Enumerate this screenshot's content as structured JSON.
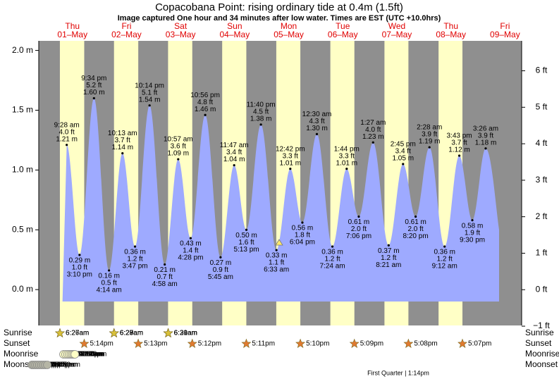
{
  "chart_data": {
    "type": "tide",
    "title": "Copacobana Point: rising  ordinary tide at 0.4m (1.5ft)",
    "subtitle": "Image captured One hour and 34 minutes after low water. Times are EST (UTC +10.0hrs)",
    "color": "#9eaaff",
    "ylim": [
      -0.3,
      2.08
    ],
    "yticks": [
      {
        "value": 0,
        "label": "0.0 m"
      },
      {
        "value": 0.5,
        "label": "0.5 m"
      },
      {
        "value": 1,
        "label": "1.0 m"
      },
      {
        "value": 1.5,
        "label": "1.5 m"
      },
      {
        "value": 2,
        "label": "2.0 m"
      }
    ],
    "y2lim": [
      -0.98,
      6.82
    ],
    "y2ticks": [
      {
        "value": -1,
        "label": "−1 ft"
      },
      {
        "value": 0,
        "label": "0 ft"
      },
      {
        "value": 1,
        "label": "1 ft"
      },
      {
        "value": 2,
        "label": "2 ft"
      },
      {
        "value": 3,
        "label": "3 ft"
      },
      {
        "value": 4,
        "label": "4 ft"
      },
      {
        "value": 5,
        "label": "5 ft"
      },
      {
        "value": 6,
        "label": "6 ft"
      }
    ],
    "days": [
      {
        "weekday": "Thu",
        "date": "01–May",
        "tides": [
          {
            "time": "9:28 am",
            "value": 1.21,
            "label": "1.21 m",
            "feet": "4.0 ft"
          },
          {
            "time": "3:10 pm",
            "value": 0.29,
            "label": "0.29 m",
            "feet": "1.0 ft"
          },
          {
            "time": "9:34 pm",
            "value": 1.6,
            "label": "1.60 m",
            "feet": "5.2 ft"
          }
        ]
      },
      {
        "weekday": "Fri",
        "date": "02–May",
        "tides": [
          {
            "time": "4:14 am",
            "value": 0.16,
            "label": "0.16 m",
            "feet": "0.5 ft"
          },
          {
            "time": "10:13 am",
            "value": 1.14,
            "label": "1.14 m",
            "feet": "3.7 ft"
          },
          {
            "time": "3:47 pm",
            "value": 0.36,
            "label": "0.36 m",
            "feet": "1.2 ft"
          },
          {
            "time": "10:14 pm",
            "value": 1.54,
            "label": "1.54 m",
            "feet": "5.1 ft"
          }
        ]
      },
      {
        "weekday": "Sat",
        "date": "03–May",
        "tides": [
          {
            "time": "4:58 am",
            "value": 0.21,
            "label": "0.21 m",
            "feet": "0.7 ft"
          },
          {
            "time": "10:57 am",
            "value": 1.09,
            "label": "1.09 m",
            "feet": "3.6 ft"
          },
          {
            "time": "4:28 pm",
            "value": 0.43,
            "label": "0.43 m",
            "feet": "1.4 ft"
          },
          {
            "time": "10:56 pm",
            "value": 1.46,
            "label": "1.46 m",
            "feet": "4.8 ft"
          }
        ]
      },
      {
        "weekday": "Sun",
        "date": "04–May",
        "tides": [
          {
            "time": "5:45 am",
            "value": 0.27,
            "label": "0.27 m",
            "feet": "0.9 ft"
          },
          {
            "time": "11:47 am",
            "value": 1.04,
            "label": "1.04 m",
            "feet": "3.4 ft"
          },
          {
            "time": "5:13 pm",
            "value": 0.5,
            "label": "0.50 m",
            "feet": "1.6 ft"
          },
          {
            "time": "11:40 pm",
            "value": 1.38,
            "label": "1.38 m",
            "feet": "4.5 ft"
          }
        ]
      },
      {
        "weekday": "Mon",
        "date": "05–May",
        "tides": [
          {
            "time": "6:33 am",
            "value": 0.33,
            "label": "0.33 m",
            "feet": "1.1 ft"
          },
          {
            "time": "12:42 pm",
            "value": 1.01,
            "label": "1.01 m",
            "feet": "3.3 ft"
          },
          {
            "time": "6:04 pm",
            "value": 0.56,
            "label": "0.56 m",
            "feet": "1.8 ft"
          }
        ]
      },
      {
        "weekday": "Tue",
        "date": "06–May",
        "tides": [
          {
            "time": "12:30 am",
            "value": 1.3,
            "label": "1.30 m",
            "feet": "4.3 ft"
          },
          {
            "time": "7:24 am",
            "value": 0.36,
            "label": "0.36 m",
            "feet": "1.2 ft"
          },
          {
            "time": "1:44 pm",
            "value": 1.01,
            "label": "1.01 m",
            "feet": "3.3 ft"
          },
          {
            "time": "7:06 pm",
            "value": 0.61,
            "label": "0.61 m",
            "feet": "2.0 ft"
          }
        ]
      },
      {
        "weekday": "Wed",
        "date": "07–May",
        "tides": [
          {
            "time": "1:27 am",
            "value": 1.23,
            "label": "1.23 m",
            "feet": "4.0 ft"
          },
          {
            "time": "8:21 am",
            "value": 0.37,
            "label": "0.37 m",
            "feet": "1.2 ft"
          },
          {
            "time": "2:45 pm",
            "value": 1.05,
            "label": "1.05 m",
            "feet": "3.4 ft"
          },
          {
            "time": "8:20 pm",
            "value": 0.61,
            "label": "0.61 m",
            "feet": "2.0 ft"
          }
        ]
      },
      {
        "weekday": "Thu",
        "date": "08–May",
        "tides": [
          {
            "time": "2:28 am",
            "value": 1.19,
            "label": "1.19 m",
            "feet": "3.9 ft"
          },
          {
            "time": "9:12 am",
            "value": 0.36,
            "label": "0.36 m",
            "feet": "1.2 ft"
          },
          {
            "time": "3:43 pm",
            "value": 1.12,
            "label": "1.12 m",
            "feet": "3.7 ft"
          },
          {
            "time": "9:30 pm",
            "value": 0.58,
            "label": "0.58 m",
            "feet": "1.9 ft"
          }
        ]
      },
      {
        "weekday": "Fri",
        "date": "09–May",
        "tides": [
          {
            "time": "3:26 am",
            "value": 1.18,
            "label": "1.18 m",
            "feet": "3.9 ft"
          }
        ]
      }
    ],
    "almanac": [
      {
        "name": "Sunrise",
        "times": [
          "6:26am",
          "6:27am",
          "6:27am",
          "6:28am",
          "6:29am",
          "6:29am",
          "6:30am",
          "6:31am"
        ]
      },
      {
        "name": "Sunset",
        "times": [
          "5:14pm",
          "5:13pm",
          "5:12pm",
          "5:11pm",
          "5:10pm",
          "5:09pm",
          "5:08pm",
          "5:07pm"
        ]
      },
      {
        "name": "Moonrise",
        "times": [
          "8:02am",
          "8:57am",
          "9:48am",
          "10:34am",
          "11:17am",
          "11:56am",
          "12:32pm",
          "1:06pm"
        ]
      },
      {
        "name": "Moonset",
        "times": [
          "6:00pm",
          "6:46pm",
          "7:35pm",
          "8:25pm",
          "9:17pm",
          "10:10pm",
          "11:03pm",
          "11:56pm",
          "12:50am"
        ]
      }
    ],
    "moon_phase": "First Quarter | 1:14pm"
  }
}
